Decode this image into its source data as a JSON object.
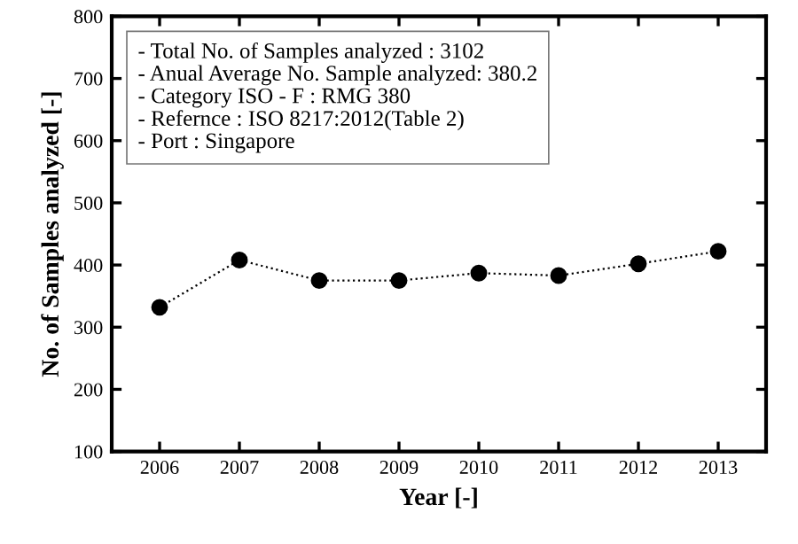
{
  "chart_data": {
    "type": "line",
    "xlabel": "Year [-]",
    "ylabel": "No. of Samples analyzed [-]",
    "categories": [
      "2006",
      "2007",
      "2008",
      "2009",
      "2010",
      "2011",
      "2012",
      "2013"
    ],
    "series": [
      {
        "color": "#000000",
        "values": [
          332,
          408,
          375,
          375,
          387,
          383,
          402,
          422
        ]
      }
    ],
    "ylim": [
      100,
      800
    ],
    "yticks": [
      100,
      200,
      300,
      400,
      500,
      600,
      700,
      800
    ],
    "grid": false,
    "legend": false,
    "marker": "circle",
    "line_style": "dotted",
    "annotations": [
      "- Total No. of Samples analyzed : 3102",
      "- Anual Average No. Sample analyzed: 380.2",
      "- Category ISO - F : RMG 380",
      "- Refernce : ISO 8217:2012(Table 2)",
      "- Port : Singapore"
    ]
  }
}
